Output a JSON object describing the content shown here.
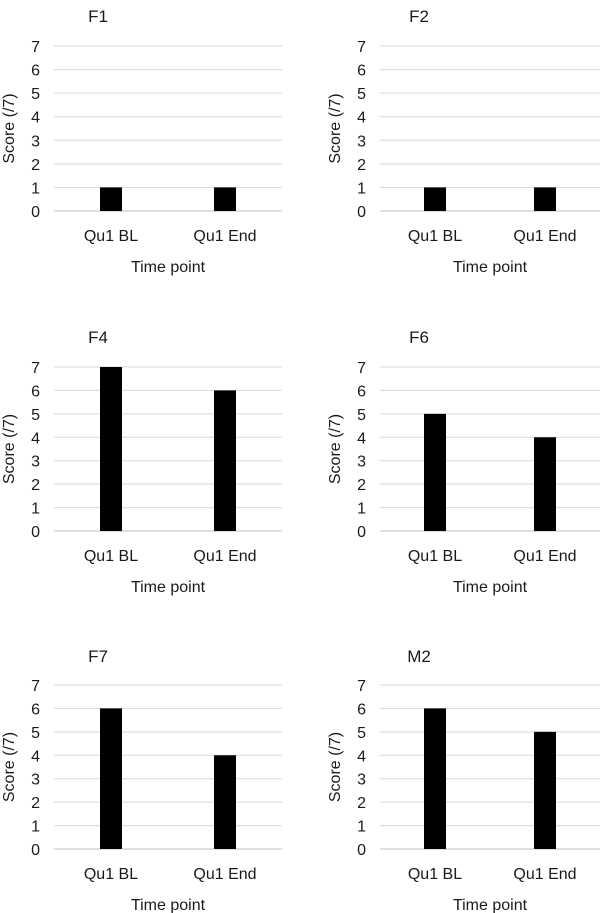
{
  "chart_data": [
    {
      "type": "bar",
      "title": "F1",
      "categories": [
        "Qu1 BL",
        "Qu1 End"
      ],
      "values": [
        1,
        1
      ],
      "xlabel": "Time point",
      "ylabel": "Score (/7)",
      "ylim": [
        0,
        7
      ],
      "yticks": [
        0,
        1,
        2,
        3,
        4,
        5,
        6,
        7
      ],
      "grid": true,
      "bar_color": "#000000"
    },
    {
      "type": "bar",
      "title": "F2",
      "categories": [
        "Qu1 BL",
        "Qu1 End"
      ],
      "values": [
        1,
        1
      ],
      "xlabel": "Time point",
      "ylabel": "Score (/7)",
      "ylim": [
        0,
        7
      ],
      "yticks": [
        0,
        1,
        2,
        3,
        4,
        5,
        6,
        7
      ],
      "grid": true,
      "bar_color": "#000000"
    },
    {
      "type": "bar",
      "title": "F4",
      "categories": [
        "Qu1 BL",
        "Qu1 End"
      ],
      "values": [
        7,
        6
      ],
      "xlabel": "Time point",
      "ylabel": "Score (/7)",
      "ylim": [
        0,
        7
      ],
      "yticks": [
        0,
        1,
        2,
        3,
        4,
        5,
        6,
        7
      ],
      "grid": true,
      "bar_color": "#000000"
    },
    {
      "type": "bar",
      "title": "F6",
      "categories": [
        "Qu1 BL",
        "Qu1 End"
      ],
      "values": [
        5,
        4
      ],
      "xlabel": "Time point",
      "ylabel": "Score (/7)",
      "ylim": [
        0,
        7
      ],
      "yticks": [
        0,
        1,
        2,
        3,
        4,
        5,
        6,
        7
      ],
      "grid": true,
      "bar_color": "#000000"
    },
    {
      "type": "bar",
      "title": "F7",
      "categories": [
        "Qu1 BL",
        "Qu1 End"
      ],
      "values": [
        6,
        4
      ],
      "xlabel": "Time point",
      "ylabel": "Score (/7)",
      "ylim": [
        0,
        7
      ],
      "yticks": [
        0,
        1,
        2,
        3,
        4,
        5,
        6,
        7
      ],
      "grid": true,
      "bar_color": "#000000"
    },
    {
      "type": "bar",
      "title": "M2",
      "categories": [
        "Qu1 BL",
        "Qu1 End"
      ],
      "values": [
        6,
        5
      ],
      "xlabel": "Time point",
      "ylabel": "Score (/7)",
      "ylim": [
        0,
        7
      ],
      "yticks": [
        0,
        1,
        2,
        3,
        4,
        5,
        6,
        7
      ],
      "grid": true,
      "bar_color": "#000000"
    }
  ]
}
